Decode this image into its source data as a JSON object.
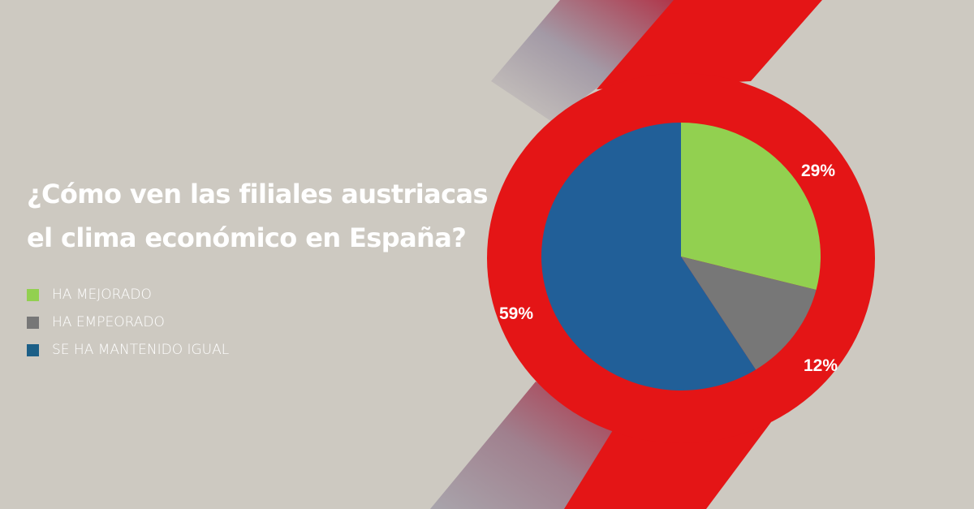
{
  "colors": {
    "background": "#cdc9c1",
    "accent_red": "#e41516",
    "green": "#92d050",
    "gray": "#777777",
    "blue": "#215f98"
  },
  "chart_data": {
    "type": "pie",
    "title": [
      "¿Cómo ven las filiales austriacas",
      "el clima económico en España?"
    ],
    "categories": [
      "HA MEJORADO",
      "HA EMPEORADO",
      "SE HA MANTENIDO IGUAL"
    ],
    "values": [
      29,
      12,
      59
    ],
    "data_labels": [
      "29%",
      "12%",
      "59%"
    ],
    "colors": [
      "#92d050",
      "#777777",
      "#215f98"
    ],
    "legend": "left"
  }
}
